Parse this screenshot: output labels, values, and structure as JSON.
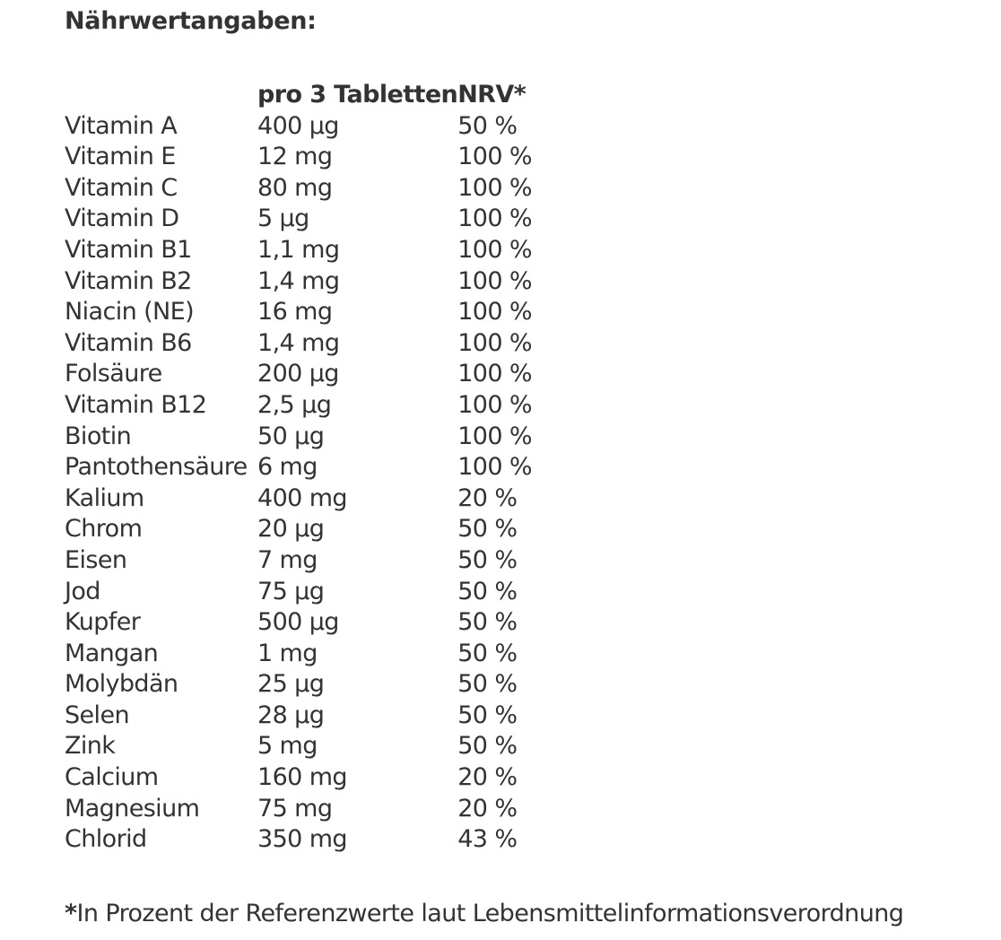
{
  "heading": "Nährwertangaben:",
  "table": {
    "headers": [
      "",
      "pro 3 Tabletten",
      "NRV*"
    ],
    "rows": [
      {
        "name": "Vitamin A",
        "amount": "400 µg",
        "nrv": "50 %"
      },
      {
        "name": "Vitamin E",
        "amount": "12 mg",
        "nrv": "100 %"
      },
      {
        "name": "Vitamin C",
        "amount": "80 mg",
        "nrv": "100 %"
      },
      {
        "name": "Vitamin D",
        "amount": "5 µg",
        "nrv": "100 %"
      },
      {
        "name": "Vitamin B1",
        "amount": "1,1 mg",
        "nrv": "100 %"
      },
      {
        "name": "Vitamin B2",
        "amount": "1,4 mg",
        "nrv": "100 %"
      },
      {
        "name": "Niacin (NE)",
        "amount": "16 mg",
        "nrv": "100 %"
      },
      {
        "name": "Vitamin B6",
        "amount": "1,4 mg",
        "nrv": "100 %"
      },
      {
        "name": "Folsäure",
        "amount": "200 µg",
        "nrv": "100 %"
      },
      {
        "name": "Vitamin B12",
        "amount": "2,5 µg",
        "nrv": "100 %"
      },
      {
        "name": "Biotin",
        "amount": "50 µg",
        "nrv": "100 %"
      },
      {
        "name": "Pantothensäure",
        "amount": "6 mg",
        "nrv": "100 %"
      },
      {
        "name": "Kalium",
        "amount": "400 mg",
        "nrv": "20 %"
      },
      {
        "name": "Chrom",
        "amount": "20 µg",
        "nrv": "50 %"
      },
      {
        "name": "Eisen",
        "amount": "7 mg",
        "nrv": "50 %"
      },
      {
        "name": "Jod",
        "amount": "75 µg",
        "nrv": "50 %"
      },
      {
        "name": "Kupfer",
        "amount": "500 µg",
        "nrv": "50 %"
      },
      {
        "name": "Mangan",
        "amount": "1 mg",
        "nrv": "50 %"
      },
      {
        "name": "Molybdän",
        "amount": "25 µg",
        "nrv": "50 %"
      },
      {
        "name": "Selen",
        "amount": "28 µg",
        "nrv": "50 %"
      },
      {
        "name": "Zink",
        "amount": "5 mg",
        "nrv": "50 %"
      },
      {
        "name": "Calcium",
        "amount": "160 mg",
        "nrv": "20 %"
      },
      {
        "name": "Magnesium",
        "amount": "75 mg",
        "nrv": "20 %"
      },
      {
        "name": "Chlorid",
        "amount": "350 mg",
        "nrv": "43 %"
      }
    ]
  },
  "footnote": {
    "marker": "*",
    "text": "In Prozent der Referenzwerte laut Lebensmittelinformationsverordnung"
  },
  "colors": {
    "text": "#333333",
    "background": "#ffffff"
  }
}
